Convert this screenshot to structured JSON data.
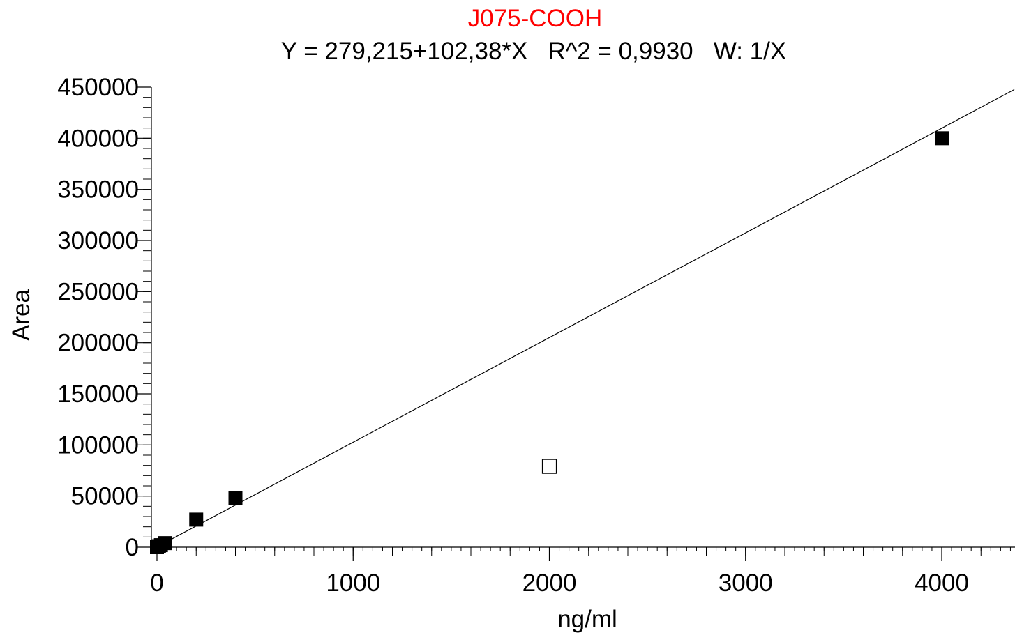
{
  "chart_data": {
    "type": "scatter",
    "title": "J075-COOH",
    "subtitle": "Y = 279,215+102,38*X   R^2 = 0,9930   W: 1/X",
    "xlabel": "ng/ml",
    "ylabel": "Area",
    "xlim": [
      -20,
      4370
    ],
    "ylim": [
      0,
      450000
    ],
    "x_ticks": [
      0,
      1000,
      2000,
      3000,
      4000
    ],
    "y_ticks": [
      0,
      50000,
      100000,
      150000,
      200000,
      250000,
      300000,
      350000,
      400000,
      450000
    ],
    "x_minor_step": 50,
    "y_minor_step": 10000,
    "fit": {
      "intercept": 279.215,
      "slope": 102.38
    },
    "series": [
      {
        "marker": "filled-square",
        "points": [
          {
            "x": 0,
            "y": 0
          },
          {
            "x": 10,
            "y": 1000
          },
          {
            "x": 20,
            "y": 2000
          },
          {
            "x": 40,
            "y": 4000
          },
          {
            "x": 200,
            "y": 27000
          },
          {
            "x": 400,
            "y": 48000
          },
          {
            "x": 4000,
            "y": 400000
          }
        ]
      },
      {
        "marker": "open-square",
        "points": [
          {
            "x": 2000,
            "y": 79000
          }
        ]
      }
    ],
    "colors": {
      "title": "#ff0000",
      "text": "#000000",
      "line": "#000000",
      "marker": "#000000"
    },
    "grid": false
  }
}
